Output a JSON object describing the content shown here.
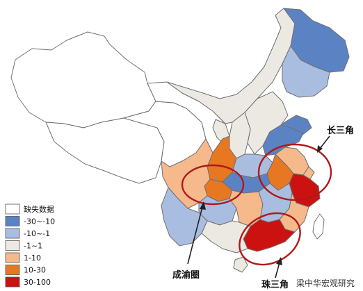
{
  "colors": {
    "missing": "#ffffff",
    "neg_high": "#5b83c4",
    "neg_low": "#a9bde0",
    "neutral": "#ece9e3",
    "pos_low": "#f5b98c",
    "pos_mid": "#e87722",
    "pos_high": "#cc1111",
    "ring": "#b01818",
    "border": "#6f6f6f"
  },
  "legend": {
    "items": [
      {
        "key": "missing",
        "label": "缺失数据"
      },
      {
        "key": "neg_high",
        "label": "-30~-10"
      },
      {
        "key": "neg_low",
        "label": "-10~-1"
      },
      {
        "key": "neutral",
        "label": "-1~1"
      },
      {
        "key": "pos_low",
        "label": "1-10"
      },
      {
        "key": "pos_mid",
        "label": "10-30"
      },
      {
        "key": "pos_high",
        "label": "30-100"
      }
    ]
  },
  "regions": [
    {
      "id": "xinjiang",
      "class": "missing"
    },
    {
      "id": "tibet",
      "class": "missing"
    },
    {
      "id": "qinghai",
      "class": "missing"
    },
    {
      "id": "gansu",
      "class": "missing"
    },
    {
      "id": "inner_mongolia",
      "class": "neutral"
    },
    {
      "id": "ningxia",
      "class": "neutral"
    },
    {
      "id": "heilongjiang",
      "class": "neg_high"
    },
    {
      "id": "jilin",
      "class": "neg_low"
    },
    {
      "id": "liaoning",
      "class": "neg_high"
    },
    {
      "id": "hebei",
      "class": "neutral"
    },
    {
      "id": "shanxi",
      "class": "neutral"
    },
    {
      "id": "shandong",
      "class": "neg_high"
    },
    {
      "id": "shaanxi",
      "class": "pos_mid"
    },
    {
      "id": "henan",
      "class": "neg_low"
    },
    {
      "id": "jiangsu",
      "class": "pos_low"
    },
    {
      "id": "anhui",
      "class": "pos_mid"
    },
    {
      "id": "zhejiang",
      "class": "pos_high"
    },
    {
      "id": "shanghai",
      "class": "pos_low"
    },
    {
      "id": "hubei",
      "class": "neg_high"
    },
    {
      "id": "chongqing",
      "class": "pos_mid"
    },
    {
      "id": "sichuan",
      "class": "pos_low"
    },
    {
      "id": "guizhou",
      "class": "neg_low"
    },
    {
      "id": "yunnan",
      "class": "neg_low"
    },
    {
      "id": "hunan",
      "class": "pos_low"
    },
    {
      "id": "jiangxi",
      "class": "neg_low"
    },
    {
      "id": "fujian",
      "class": "pos_low"
    },
    {
      "id": "guangdong",
      "class": "pos_high"
    },
    {
      "id": "guangxi",
      "class": "neutral"
    },
    {
      "id": "hainan",
      "class": "neutral"
    },
    {
      "id": "taiwan",
      "class": "missing"
    }
  ],
  "annotations": {
    "changsanjiao": "长三角",
    "chengyuquan": "成渝圈",
    "zhusanjiao": "珠三角"
  },
  "watermark": "梁中华宏观研究"
}
